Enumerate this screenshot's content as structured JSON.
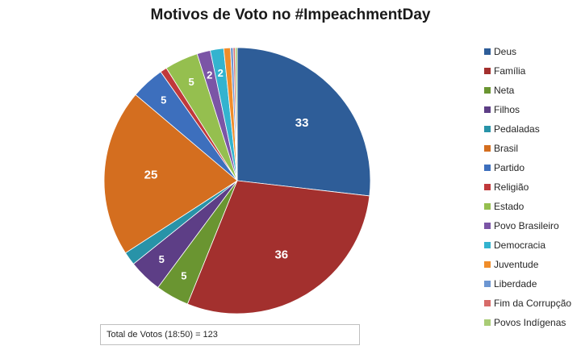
{
  "chart_data": {
    "type": "pie",
    "title": "Motivos de Voto no #ImpeachmentDay",
    "categories": [
      "Deus",
      "Família",
      "Neta",
      "Filhos",
      "Pedaladas",
      "Brasil",
      "Partido",
      "Religião",
      "Estado",
      "Povo Brasileiro",
      "Democracia",
      "Juventude",
      "Liberdade",
      "Fim da Corrupção",
      "Povos Indígenas"
    ],
    "slices": [
      {
        "label": "Deus",
        "value": 33,
        "color": "#2e5d98",
        "show_label": true
      },
      {
        "label": "Família",
        "value": 36,
        "color": "#a3302e",
        "show_label": true
      },
      {
        "label": "Neta",
        "value": 5,
        "color": "#6a9531",
        "show_label": true
      },
      {
        "label": "Filhos",
        "value": 5,
        "color": "#5d3e86",
        "show_label": true
      },
      {
        "label": "Pedaladas",
        "value": 2,
        "color": "#2893a8",
        "show_label": false
      },
      {
        "label": "Brasil",
        "value": 25,
        "color": "#d46e1f",
        "show_label": true
      },
      {
        "label": "Partido",
        "value": 5,
        "color": "#3d6fbd",
        "show_label": true
      },
      {
        "label": "Religião",
        "value": 1,
        "color": "#c0393b",
        "show_label": false
      },
      {
        "label": "Estado",
        "value": 5,
        "color": "#95bf4f",
        "show_label": true
      },
      {
        "label": "Povo Brasileiro",
        "value": 2,
        "color": "#7b55a6",
        "show_label": true
      },
      {
        "label": "Democracia",
        "value": 2,
        "color": "#33b3cf",
        "show_label": true
      },
      {
        "label": "Juventude",
        "value": 1,
        "color": "#f08d2a",
        "show_label": false
      },
      {
        "label": "Liberdade",
        "value": 0.4,
        "color": "#6c96d2",
        "show_label": false
      },
      {
        "label": "Fim da Corrupção",
        "value": 0.3,
        "color": "#d76b69",
        "show_label": false
      },
      {
        "label": "Povos Indígenas",
        "value": 0.3,
        "color": "#a9cc76",
        "show_label": false
      }
    ],
    "legend_position": "right",
    "note": "Total de Votos (18:50) = 123"
  }
}
